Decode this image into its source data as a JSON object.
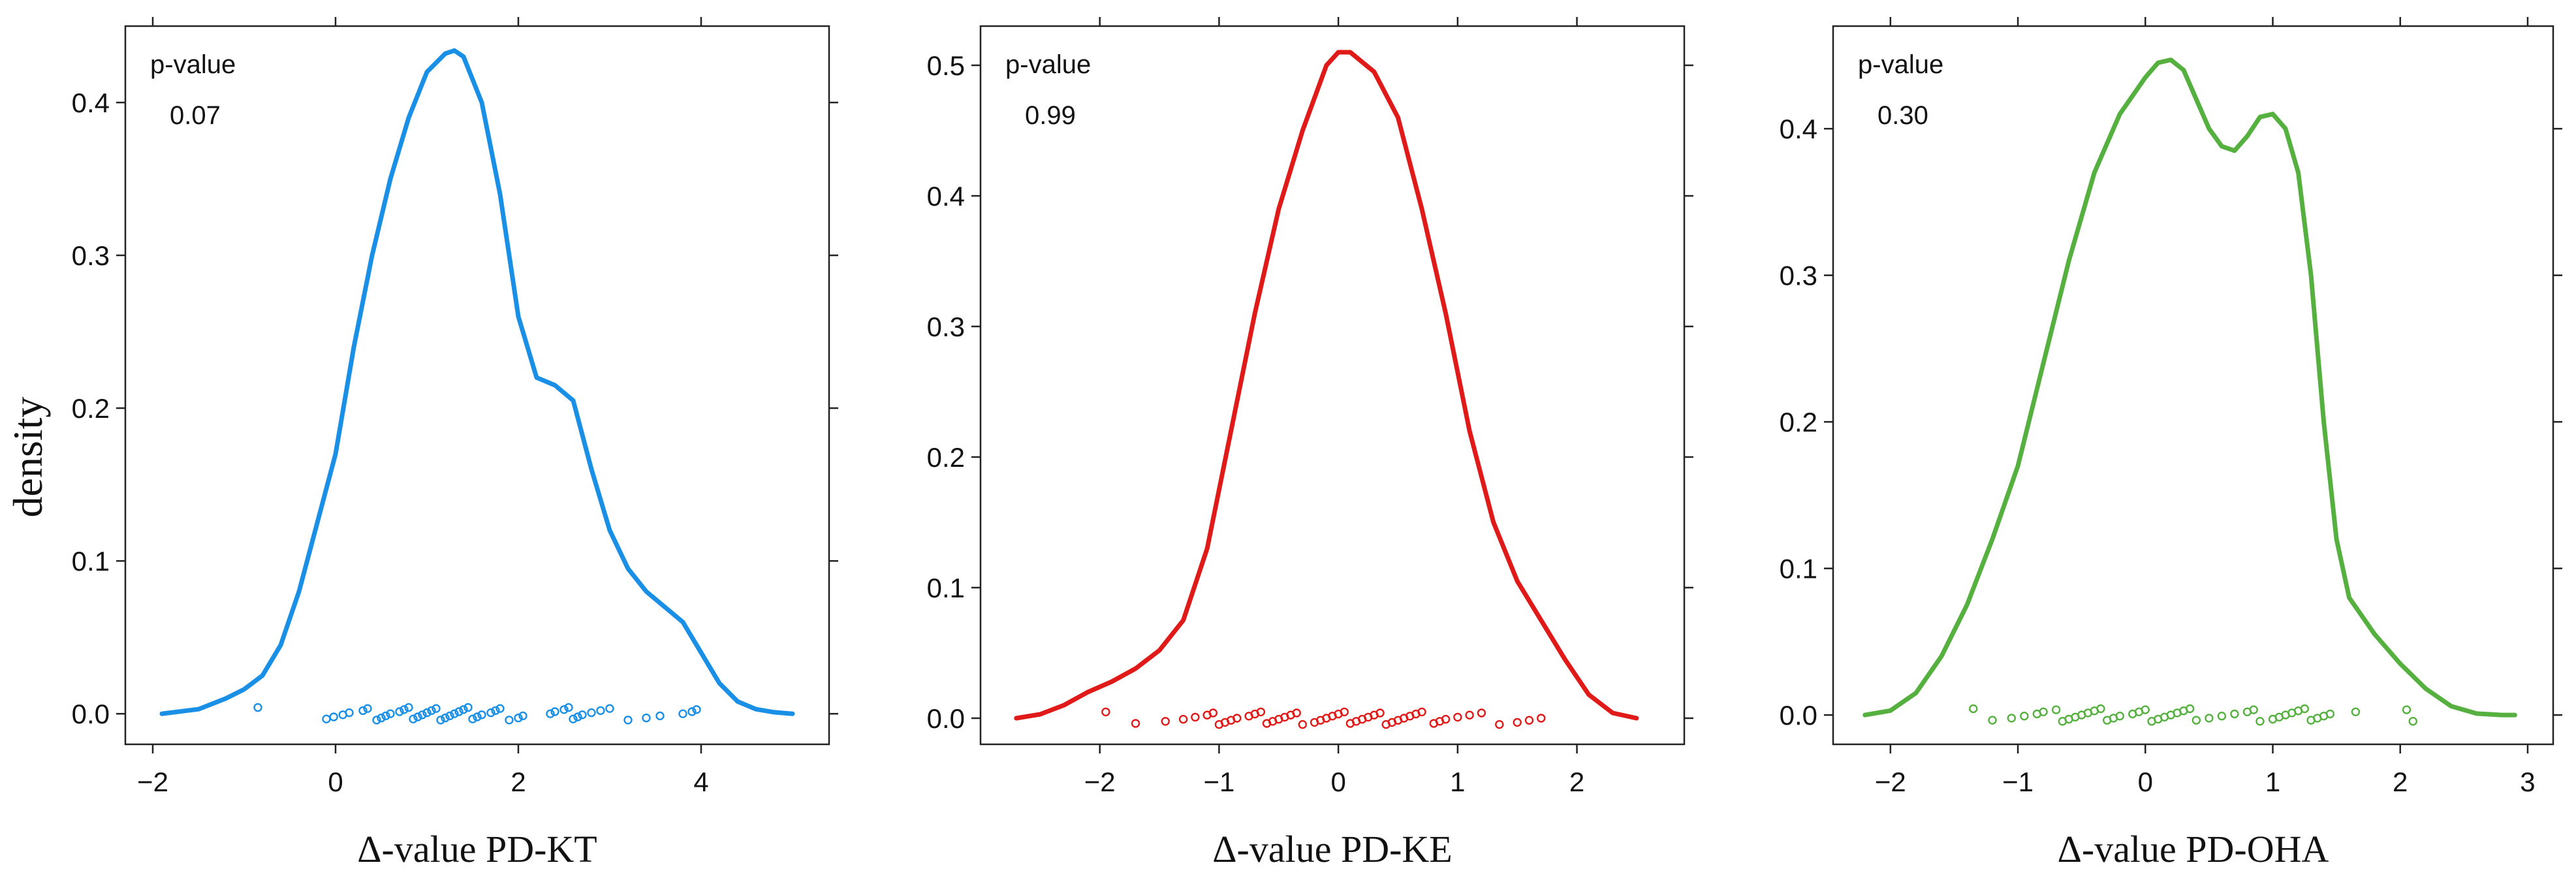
{
  "ylabel": "density",
  "chart_data": [
    {
      "type": "line",
      "name": "PD-KT",
      "color": "#1a8fe6",
      "xlabel": "Δ-value PD-KT",
      "ylabel": "density",
      "annotation": {
        "label": "p-value",
        "value": "0.07"
      },
      "xlim": [
        -2.3,
        5.4
      ],
      "ylim": [
        -0.02,
        0.45
      ],
      "xticks": [
        -2,
        0,
        2,
        4
      ],
      "yticks": [
        0.0,
        0.1,
        0.2,
        0.3,
        0.4
      ],
      "ytick_labels": [
        "0.0",
        "0.1",
        "0.2",
        "0.3",
        "0.4"
      ],
      "series": [
        {
          "name": "density",
          "x": [
            -1.9,
            -1.5,
            -1.2,
            -1.0,
            -0.8,
            -0.6,
            -0.4,
            -0.2,
            0.0,
            0.2,
            0.4,
            0.6,
            0.8,
            1.0,
            1.2,
            1.3,
            1.4,
            1.6,
            1.8,
            2.0,
            2.2,
            2.4,
            2.6,
            2.8,
            3.0,
            3.2,
            3.4,
            3.6,
            3.8,
            4.0,
            4.2,
            4.4,
            4.6,
            4.8,
            5.0
          ],
          "y": [
            0.0,
            0.003,
            0.01,
            0.016,
            0.025,
            0.045,
            0.08,
            0.125,
            0.17,
            0.24,
            0.3,
            0.35,
            0.39,
            0.42,
            0.432,
            0.434,
            0.43,
            0.4,
            0.34,
            0.26,
            0.22,
            0.215,
            0.205,
            0.16,
            0.12,
            0.095,
            0.08,
            0.07,
            0.06,
            0.04,
            0.02,
            0.008,
            0.003,
            0.001,
            0.0
          ]
        }
      ],
      "rug": [
        -0.85,
        -0.1,
        -0.02,
        0.08,
        0.15,
        0.3,
        0.35,
        0.45,
        0.5,
        0.55,
        0.6,
        0.7,
        0.75,
        0.8,
        0.85,
        0.9,
        0.95,
        1.0,
        1.05,
        1.1,
        1.15,
        1.2,
        1.25,
        1.3,
        1.35,
        1.4,
        1.45,
        1.5,
        1.55,
        1.6,
        1.7,
        1.75,
        1.8,
        1.9,
        2.0,
        2.05,
        2.35,
        2.4,
        2.5,
        2.55,
        2.6,
        2.65,
        2.7,
        2.8,
        2.9,
        3.0,
        3.2,
        3.4,
        3.55,
        3.8,
        3.9,
        3.95
      ]
    },
    {
      "type": "line",
      "name": "PD-KE",
      "color": "#e01919",
      "xlabel": "Δ-value PD-KE",
      "ylabel": "",
      "annotation": {
        "label": "p-value",
        "value": "0.99"
      },
      "xlim": [
        -3.0,
        2.9
      ],
      "ylim": [
        -0.02,
        0.53
      ],
      "xticks": [
        -2,
        -1,
        0,
        1,
        2
      ],
      "yticks": [
        0.0,
        0.1,
        0.2,
        0.3,
        0.4,
        0.5
      ],
      "ytick_labels": [
        "0.0",
        "0.1",
        "0.2",
        "0.3",
        "0.4",
        "0.5"
      ],
      "series": [
        {
          "name": "density",
          "x": [
            -2.7,
            -2.5,
            -2.3,
            -2.1,
            -1.9,
            -1.7,
            -1.5,
            -1.3,
            -1.1,
            -0.9,
            -0.7,
            -0.5,
            -0.3,
            -0.1,
            0.0,
            0.1,
            0.3,
            0.5,
            0.7,
            0.9,
            1.1,
            1.3,
            1.5,
            1.7,
            1.9,
            2.1,
            2.3,
            2.5
          ],
          "y": [
            0.0,
            0.003,
            0.01,
            0.02,
            0.028,
            0.038,
            0.052,
            0.075,
            0.13,
            0.22,
            0.31,
            0.39,
            0.45,
            0.5,
            0.51,
            0.51,
            0.495,
            0.46,
            0.39,
            0.31,
            0.22,
            0.15,
            0.105,
            0.075,
            0.045,
            0.018,
            0.004,
            0.0
          ]
        }
      ],
      "rug": [
        -1.95,
        -1.7,
        -1.45,
        -1.3,
        -1.2,
        -1.1,
        -1.05,
        -1.0,
        -0.95,
        -0.9,
        -0.85,
        -0.75,
        -0.7,
        -0.65,
        -0.6,
        -0.55,
        -0.5,
        -0.45,
        -0.4,
        -0.35,
        -0.3,
        -0.2,
        -0.15,
        -0.1,
        -0.05,
        0.0,
        0.05,
        0.1,
        0.15,
        0.2,
        0.25,
        0.3,
        0.35,
        0.4,
        0.45,
        0.5,
        0.55,
        0.6,
        0.65,
        0.7,
        0.8,
        0.85,
        0.9,
        1.0,
        1.1,
        1.2,
        1.35,
        1.5,
        1.6,
        1.7
      ]
    },
    {
      "type": "line",
      "name": "PD-OHA",
      "color": "#55b03f",
      "xlabel": "Δ-value PD-OHA",
      "ylabel": "",
      "annotation": {
        "label": "p-value",
        "value": "0.30"
      },
      "xlim": [
        -2.45,
        3.2
      ],
      "ylim": [
        -0.02,
        0.47
      ],
      "xticks": [
        -2,
        -1,
        0,
        1,
        2,
        3
      ],
      "yticks": [
        0.0,
        0.1,
        0.2,
        0.3,
        0.4
      ],
      "ytick_labels": [
        "0.0",
        "0.1",
        "0.2",
        "0.3",
        "0.4"
      ],
      "series": [
        {
          "name": "density",
          "x": [
            -2.2,
            -2.0,
            -1.8,
            -1.6,
            -1.4,
            -1.2,
            -1.0,
            -0.8,
            -0.6,
            -0.4,
            -0.2,
            0.0,
            0.1,
            0.2,
            0.3,
            0.4,
            0.5,
            0.6,
            0.7,
            0.8,
            0.9,
            1.0,
            1.1,
            1.2,
            1.3,
            1.4,
            1.5,
            1.6,
            1.8,
            2.0,
            2.2,
            2.4,
            2.6,
            2.8,
            2.9
          ],
          "y": [
            0.0,
            0.003,
            0.015,
            0.04,
            0.075,
            0.12,
            0.17,
            0.24,
            0.31,
            0.37,
            0.41,
            0.435,
            0.445,
            0.447,
            0.44,
            0.42,
            0.4,
            0.388,
            0.385,
            0.395,
            0.408,
            0.41,
            0.4,
            0.37,
            0.3,
            0.2,
            0.12,
            0.08,
            0.055,
            0.035,
            0.018,
            0.006,
            0.001,
            0.0,
            0.0
          ]
        }
      ],
      "rug": [
        -1.35,
        -1.2,
        -1.05,
        -0.95,
        -0.85,
        -0.8,
        -0.7,
        -0.65,
        -0.6,
        -0.55,
        -0.5,
        -0.45,
        -0.4,
        -0.35,
        -0.3,
        -0.25,
        -0.2,
        -0.1,
        -0.05,
        0.0,
        0.05,
        0.1,
        0.15,
        0.2,
        0.25,
        0.3,
        0.35,
        0.4,
        0.5,
        0.6,
        0.7,
        0.8,
        0.85,
        0.9,
        1.0,
        1.05,
        1.1,
        1.15,
        1.2,
        1.25,
        1.3,
        1.35,
        1.4,
        1.45,
        1.65,
        2.05,
        2.1
      ]
    }
  ]
}
